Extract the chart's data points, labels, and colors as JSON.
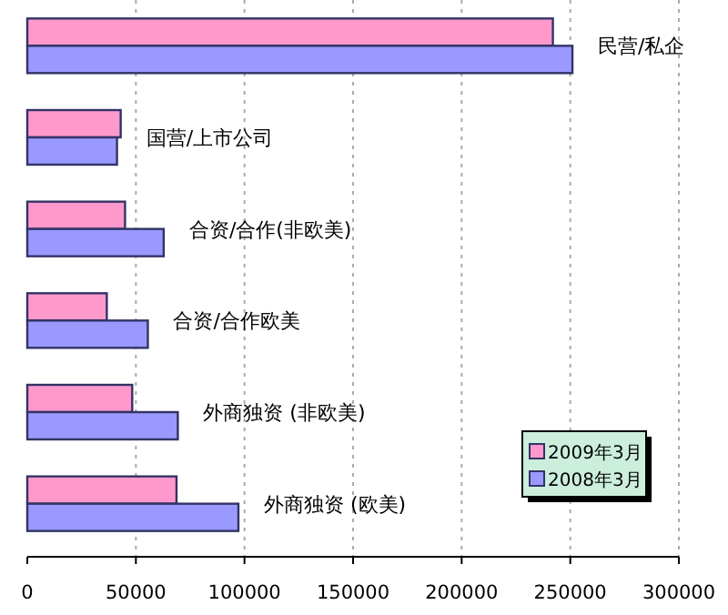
{
  "chart_data": {
    "type": "bar",
    "orientation": "horizontal",
    "categories": [
      "民营/私企",
      "国营/上市公司",
      "合资/合作(非欧美)",
      "合资/合作欧美",
      "外商独资 (非欧美)",
      "外商独资 (欧美)"
    ],
    "series": [
      {
        "name": "2009年3月",
        "color": "#ff99cc",
        "values": [
          242000,
          43000,
          45000,
          36600,
          48300,
          68700
        ]
      },
      {
        "name": "2008年3月",
        "color": "#9999ff",
        "values": [
          251000,
          41300,
          62800,
          55500,
          69300,
          97200
        ]
      }
    ],
    "xlim": [
      0,
      300000
    ],
    "xticks": [
      0,
      50000,
      100000,
      150000,
      200000,
      250000,
      300000
    ],
    "grid": "x",
    "legend": "bottom right",
    "tick_labels": "x"
  }
}
